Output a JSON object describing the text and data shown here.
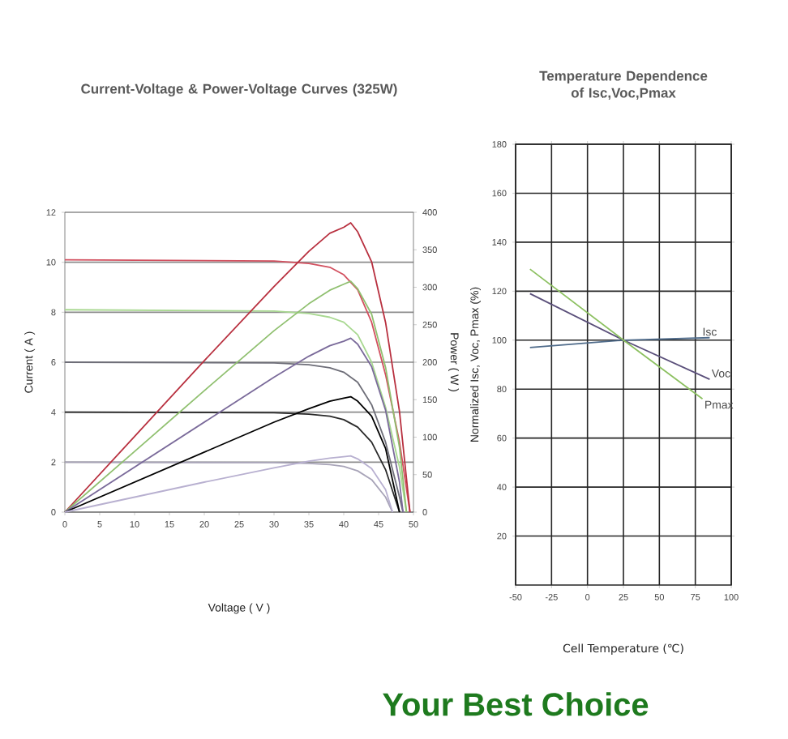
{
  "chart_data": [
    {
      "type": "line",
      "title": "Current-Voltage & Power-Voltage Curves (325W)",
      "xlabel": "Voltage ( V )",
      "ylabel": "Current ( A )",
      "y2label": "Power ( W )",
      "xlim": [
        0,
        50
      ],
      "xticks": [
        0,
        5,
        10,
        15,
        20,
        25,
        30,
        35,
        40,
        45,
        50
      ],
      "ylim": [
        0,
        12
      ],
      "yticks": [
        0,
        2,
        4,
        6,
        8,
        10,
        12
      ],
      "y2lim": [
        0,
        400
      ],
      "y2ticks": [
        0,
        50,
        100,
        150,
        200,
        250,
        300,
        350,
        400
      ],
      "grid": "y",
      "marker": "none",
      "line_style": "solid",
      "series": [
        {
          "color": "#d2505f",
          "x": [
            0,
            30,
            35,
            38,
            40,
            42,
            44,
            46,
            48,
            49.5
          ],
          "values": [
            10.1,
            10.05,
            9.95,
            9.8,
            9.5,
            8.9,
            7.6,
            5.5,
            2.8,
            0
          ]
        },
        {
          "color": "#a8d890",
          "x": [
            0,
            30,
            35,
            38,
            40,
            42,
            44,
            46,
            48,
            49
          ],
          "values": [
            8.1,
            8.05,
            7.95,
            7.8,
            7.6,
            7.1,
            6.0,
            4.2,
            1.8,
            0
          ]
        },
        {
          "color": "#6e6e78",
          "x": [
            0,
            30,
            35,
            38,
            40,
            42,
            44,
            46,
            48,
            48.5
          ],
          "values": [
            6.0,
            5.97,
            5.9,
            5.78,
            5.6,
            5.2,
            4.3,
            2.8,
            0.6,
            0
          ]
        },
        {
          "color": "#2a2a2a",
          "x": [
            0,
            30,
            35,
            38,
            40,
            42,
            44,
            46,
            48
          ],
          "values": [
            4.0,
            3.98,
            3.92,
            3.84,
            3.7,
            3.4,
            2.8,
            1.7,
            0
          ]
        },
        {
          "color": "#a8a4b8",
          "x": [
            0,
            30,
            35,
            38,
            40,
            42,
            44,
            46,
            47
          ],
          "values": [
            2.0,
            1.98,
            1.95,
            1.9,
            1.83,
            1.65,
            1.3,
            0.6,
            0
          ]
        },
        {
          "color": "#b8303f",
          "axis": "y2",
          "x": [
            0,
            10,
            20,
            30,
            35,
            38,
            40,
            41,
            42,
            44,
            46,
            48,
            49.5
          ],
          "values": [
            0,
            101,
            202,
            301,
            348,
            372,
            380,
            386,
            374,
            334,
            253,
            134,
            0
          ]
        },
        {
          "color": "#90c070",
          "axis": "y2",
          "x": [
            0,
            10,
            20,
            30,
            35,
            38,
            40,
            41,
            42,
            44,
            46,
            48,
            49
          ],
          "values": [
            0,
            81,
            162,
            242,
            278,
            296,
            304,
            308,
            298,
            264,
            193,
            86,
            0
          ]
        },
        {
          "color": "#7a6a9a",
          "axis": "y2",
          "x": [
            0,
            10,
            20,
            30,
            35,
            38,
            40,
            41,
            42,
            44,
            46,
            48,
            48.5
          ],
          "values": [
            0,
            60,
            120,
            180,
            208,
            222,
            228,
            232,
            224,
            194,
            136,
            40,
            0
          ]
        },
        {
          "color": "#000000",
          "axis": "y2",
          "x": [
            0,
            10,
            20,
            30,
            35,
            38,
            40,
            41,
            42,
            44,
            46,
            48
          ],
          "values": [
            0,
            40,
            80,
            120,
            138,
            148,
            152,
            154,
            148,
            128,
            85,
            0
          ]
        },
        {
          "color": "#b8b0d0",
          "axis": "y2",
          "x": [
            0,
            10,
            20,
            30,
            35,
            38,
            40,
            41,
            42,
            44,
            46,
            47
          ],
          "values": [
            0,
            20,
            40,
            59,
            68,
            72,
            74,
            75,
            71,
            58,
            30,
            0
          ]
        }
      ]
    },
    {
      "type": "line",
      "title": "Temperature Dependence of Isc,Voc,Pmax",
      "xlabel": "Cell Temperature (℃)",
      "ylabel": "Normalized Isc, Voc, Pmax (%)",
      "xlim": [
        -50,
        100
      ],
      "xticks": [
        -50,
        -25,
        0,
        25,
        50,
        75,
        100
      ],
      "ylim": [
        0,
        180
      ],
      "yticks": [
        20,
        40,
        60,
        80,
        100,
        120,
        140,
        160,
        180
      ],
      "grid": true,
      "marker": "none",
      "line_style": "solid",
      "annotations": [
        "Your Best Choice"
      ],
      "series": [
        {
          "name": "Isc",
          "color": "#4f6b8a",
          "x": [
            -40,
            25,
            85
          ],
          "values": [
            97,
            100,
            101
          ]
        },
        {
          "name": "Voc",
          "color": "#5a4f7a",
          "x": [
            -40,
            25,
            85
          ],
          "values": [
            119,
            100,
            84
          ]
        },
        {
          "name": "Pmax",
          "color": "#8cc060",
          "x": [
            -40,
            25,
            80
          ],
          "values": [
            129,
            100,
            76
          ]
        }
      ]
    }
  ]
}
